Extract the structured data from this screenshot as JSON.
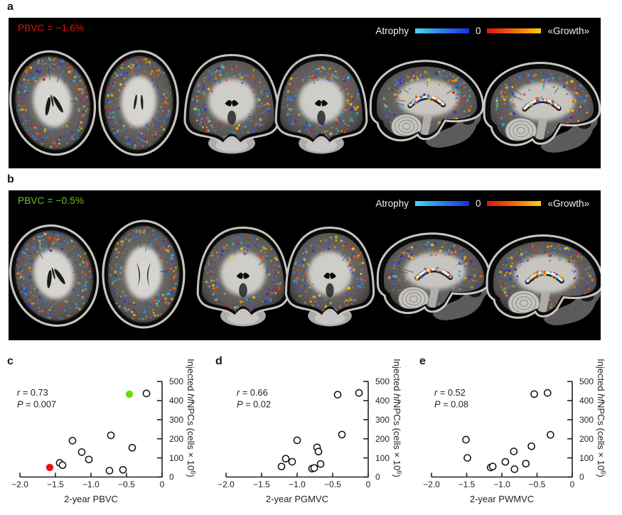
{
  "figure": {
    "panels": {
      "a": {
        "letter": "a",
        "pbvc": "PBVC = −1.6%",
        "pbvc_color": "#e3120b"
      },
      "b": {
        "letter": "b",
        "pbvc": "PBVC = −0.5%",
        "pbvc_color": "#70c226"
      }
    },
    "colorbar": {
      "atrophy_label": "Atrophy",
      "zero_label": "0",
      "growth_label": "«Growth»",
      "cold_gradient": [
        "#49d6ef",
        "#2b8ae8",
        "#1c2fe0"
      ],
      "warm_gradient": [
        "#e21111",
        "#f07307",
        "#ffd00a"
      ]
    },
    "chart_letters": {
      "c": "c",
      "d": "d",
      "e": "e"
    }
  },
  "chart_data": [
    {
      "id": "c",
      "type": "scatter",
      "stats": {
        "r_label": "r",
        "r": "0.73",
        "p_label": "P",
        "p": "0.007"
      },
      "xlabel": "2-year PBVC",
      "ylabel": {
        "pre": "Injected ",
        "italic": "hf",
        "mid": "NPCs (cells × 10",
        "sup": "6",
        "post": ")"
      },
      "xlim": [
        -2.0,
        0
      ],
      "ylim": [
        0,
        500
      ],
      "xticks": [
        {
          "v": -2.0,
          "label": "−2.0"
        },
        {
          "v": -1.5,
          "label": "−1.5"
        },
        {
          "v": -1.0,
          "label": "−1.0"
        },
        {
          "v": -0.5,
          "label": "−0.5"
        },
        {
          "v": 0,
          "label": "0"
        }
      ],
      "yticks": [
        {
          "v": 0,
          "label": "0"
        },
        {
          "v": 100,
          "label": "100"
        },
        {
          "v": 200,
          "label": "200"
        },
        {
          "v": 300,
          "label": "300"
        },
        {
          "v": 400,
          "label": "400"
        },
        {
          "v": 500,
          "label": "500"
        }
      ],
      "points": [
        {
          "x": -1.58,
          "y": 50,
          "marker": "red-dot",
          "color": "#e8151c"
        },
        {
          "x": -0.46,
          "y": 433,
          "marker": "green-dot",
          "color": "#68dd0b"
        },
        {
          "x": -1.44,
          "y": 74
        },
        {
          "x": -1.4,
          "y": 62
        },
        {
          "x": -1.26,
          "y": 190
        },
        {
          "x": -1.13,
          "y": 130
        },
        {
          "x": -1.03,
          "y": 92
        },
        {
          "x": -0.74,
          "y": 33
        },
        {
          "x": -0.72,
          "y": 218
        },
        {
          "x": -0.55,
          "y": 38
        },
        {
          "x": -0.42,
          "y": 153
        },
        {
          "x": -0.22,
          "y": 437
        }
      ]
    },
    {
      "id": "d",
      "type": "scatter",
      "stats": {
        "r_label": "r",
        "r": "0.66",
        "p_label": "P",
        "p": "0.02"
      },
      "xlabel": "2-year PGMVC",
      "ylabel": {
        "pre": "Injected ",
        "italic": "hf",
        "mid": "NPCs (cells × 10",
        "sup": "6",
        "post": ")"
      },
      "xlim": [
        -2.0,
        0
      ],
      "ylim": [
        0,
        500
      ],
      "xticks": [
        {
          "v": -2.0,
          "label": "−2.0"
        },
        {
          "v": -1.5,
          "label": "−1.5"
        },
        {
          "v": -1.0,
          "label": "−1.0"
        },
        {
          "v": -0.5,
          "label": "−0.5"
        },
        {
          "v": 0,
          "label": "0"
        }
      ],
      "yticks": [
        {
          "v": 0,
          "label": "0"
        },
        {
          "v": 100,
          "label": "100"
        },
        {
          "v": 200,
          "label": "200"
        },
        {
          "v": 300,
          "label": "300"
        },
        {
          "v": 400,
          "label": "400"
        },
        {
          "v": 500,
          "label": "500"
        }
      ],
      "points": [
        {
          "x": -1.22,
          "y": 55
        },
        {
          "x": -1.16,
          "y": 96
        },
        {
          "x": -1.07,
          "y": 80
        },
        {
          "x": -1.0,
          "y": 192
        },
        {
          "x": -0.79,
          "y": 44
        },
        {
          "x": -0.76,
          "y": 47
        },
        {
          "x": -0.72,
          "y": 155
        },
        {
          "x": -0.7,
          "y": 133
        },
        {
          "x": -0.67,
          "y": 68
        },
        {
          "x": -0.43,
          "y": 431
        },
        {
          "x": -0.37,
          "y": 222
        },
        {
          "x": -0.13,
          "y": 440
        }
      ]
    },
    {
      "id": "e",
      "type": "scatter",
      "stats": {
        "r_label": "r",
        "r": "0.52",
        "p_label": "P",
        "p": "0.08"
      },
      "xlabel": "2-year PWMVC",
      "ylabel": {
        "pre": "Injected ",
        "italic": "hf",
        "mid": "NPCs (cells × 10",
        "sup": "6",
        "post": ")"
      },
      "xlim": [
        -2.0,
        0
      ],
      "ylim": [
        0,
        500
      ],
      "xticks": [
        {
          "v": -2.0,
          "label": "−2.0"
        },
        {
          "v": -1.5,
          "label": "−1.5"
        },
        {
          "v": -1.0,
          "label": "−1.0"
        },
        {
          "v": -0.5,
          "label": "−0.5"
        },
        {
          "v": 0,
          "label": "0"
        }
      ],
      "yticks": [
        {
          "v": 0,
          "label": "0"
        },
        {
          "v": 100,
          "label": "100"
        },
        {
          "v": 200,
          "label": "200"
        },
        {
          "v": 300,
          "label": "300"
        },
        {
          "v": 400,
          "label": "400"
        },
        {
          "v": 500,
          "label": "500"
        }
      ],
      "points": [
        {
          "x": -1.51,
          "y": 195
        },
        {
          "x": -1.49,
          "y": 100
        },
        {
          "x": -1.16,
          "y": 50
        },
        {
          "x": -1.13,
          "y": 55
        },
        {
          "x": -0.95,
          "y": 79
        },
        {
          "x": -0.83,
          "y": 134
        },
        {
          "x": -0.82,
          "y": 41
        },
        {
          "x": -0.66,
          "y": 70
        },
        {
          "x": -0.58,
          "y": 161
        },
        {
          "x": -0.54,
          "y": 434
        },
        {
          "x": -0.35,
          "y": 440
        },
        {
          "x": -0.31,
          "y": 221
        }
      ]
    }
  ]
}
